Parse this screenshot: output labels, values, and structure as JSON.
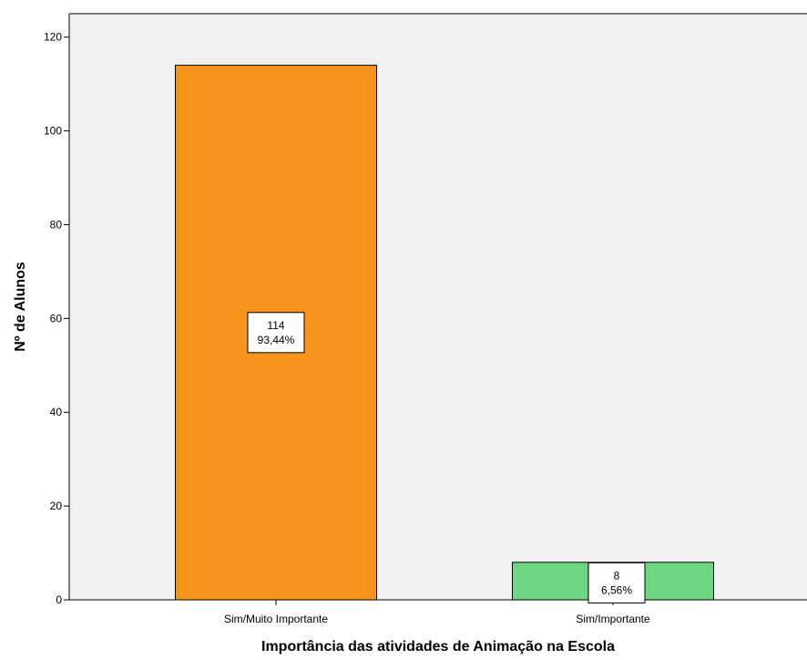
{
  "chart_data": {
    "type": "bar",
    "title": "",
    "xlabel": "Importância das atividades de Animação na Escola",
    "ylabel": "Nº de Alunos",
    "categories": [
      "Sim/Muito Importante",
      "Sim/Importante"
    ],
    "values": [
      114,
      8
    ],
    "percent_labels": [
      "93,44%",
      "6,56%"
    ],
    "bar_colors": [
      "#f7941d",
      "#6ed580"
    ],
    "plot_background": "#f0f0f0",
    "ylim": [
      0,
      125
    ],
    "yticks": [
      0,
      20,
      40,
      60,
      80,
      100,
      120
    ],
    "grid": false,
    "legend": "none"
  }
}
